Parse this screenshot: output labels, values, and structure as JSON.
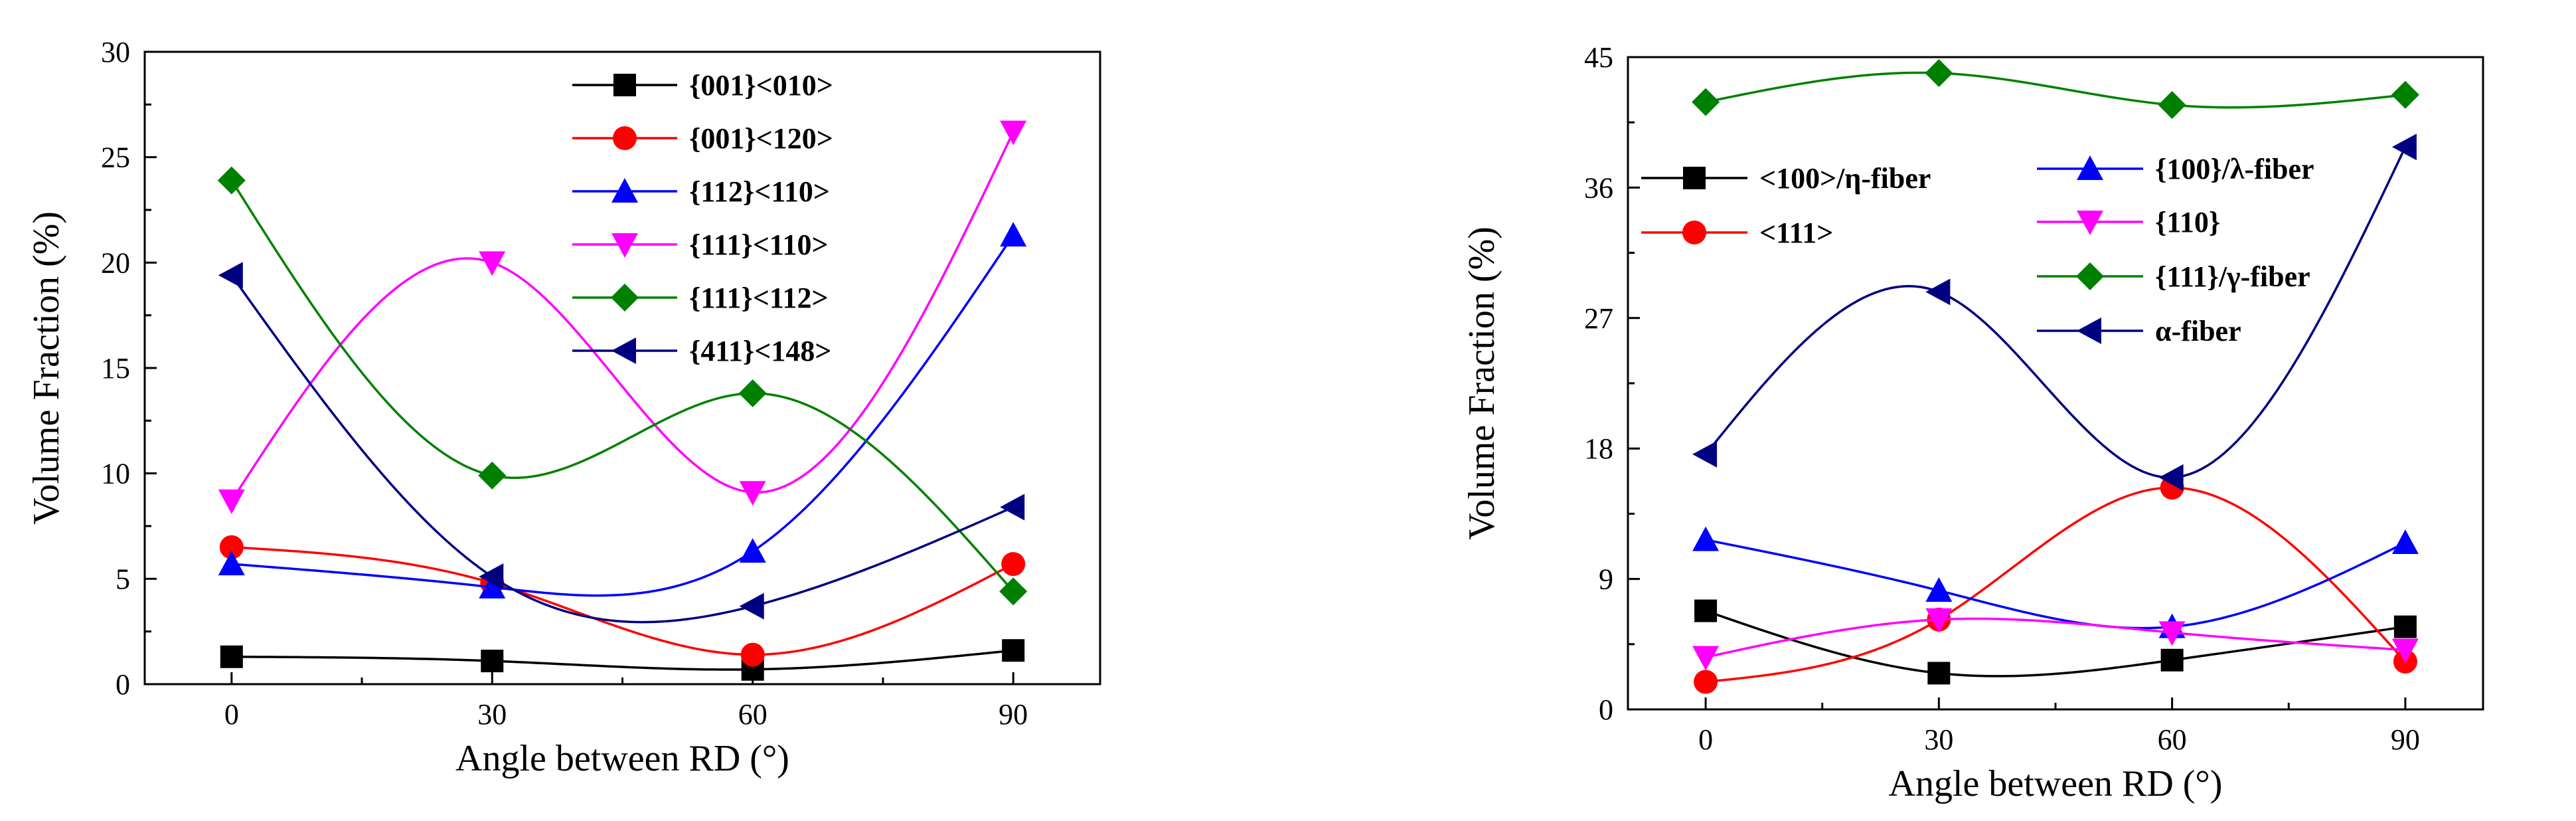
{
  "chart_data": [
    {
      "type": "line",
      "id": "left",
      "xlabel": "Angle between RD (°)",
      "ylabel": "Volume Fraction (%)",
      "x": [
        0,
        30,
        60,
        90
      ],
      "xlim": [
        -10,
        100
      ],
      "ylim": [
        0,
        30
      ],
      "xticks": [
        0,
        30,
        60,
        90
      ],
      "yticks": [
        0,
        5,
        10,
        15,
        20,
        25,
        30
      ],
      "series": [
        {
          "name": "{001}<010>",
          "values": [
            1.3,
            1.1,
            0.7,
            1.6
          ],
          "color": "#000000",
          "marker": "square"
        },
        {
          "name": "{001}<120>",
          "values": [
            6.5,
            4.8,
            1.4,
            5.7
          ],
          "color": "#ff0000",
          "marker": "circle"
        },
        {
          "name": "{112}<110>",
          "values": [
            5.7,
            4.6,
            6.3,
            21.3
          ],
          "color": "#0000ff",
          "marker": "triangle-up"
        },
        {
          "name": "{111}<110>",
          "values": [
            8.7,
            20.0,
            9.1,
            26.2
          ],
          "color": "#ff00ff",
          "marker": "triangle-down"
        },
        {
          "name": "{111}<112>",
          "values": [
            23.9,
            9.9,
            13.8,
            4.4
          ],
          "color": "#008000",
          "marker": "diamond"
        },
        {
          "name": "{411}<148>",
          "values": [
            19.4,
            5.1,
            3.7,
            8.4
          ],
          "color": "#000080",
          "marker": "triangle-left"
        }
      ]
    },
    {
      "type": "line",
      "id": "right",
      "xlabel": "Angle between RD (°)",
      "ylabel": "Volume Fraction (%)",
      "x": [
        0,
        30,
        60,
        90
      ],
      "xlim": [
        -10,
        100
      ],
      "ylim": [
        0,
        45
      ],
      "xticks": [
        0,
        30,
        60,
        90
      ],
      "yticks": [
        0,
        9,
        18,
        27,
        36,
        45
      ],
      "series": [
        {
          "name": "<100>/η-fiber",
          "values": [
            6.8,
            2.5,
            3.4,
            5.7
          ],
          "color": "#000000",
          "marker": "square"
        },
        {
          "name": "<111>",
          "values": [
            1.9,
            6.2,
            15.3,
            3.3
          ],
          "color": "#ff0000",
          "marker": "circle"
        },
        {
          "name": "{100}/λ-fiber",
          "values": [
            11.7,
            8.2,
            5.7,
            11.5
          ],
          "color": "#0000ff",
          "marker": "triangle-up"
        },
        {
          "name": "{110}",
          "values": [
            3.6,
            6.2,
            5.3,
            4.1
          ],
          "color": "#ff00ff",
          "marker": "triangle-down"
        },
        {
          "name": "{111}/γ-fiber",
          "values": [
            41.9,
            43.9,
            41.7,
            42.4
          ],
          "color": "#008000",
          "marker": "diamond"
        },
        {
          "name": "α-fiber",
          "values": [
            17.6,
            28.8,
            16.0,
            38.8
          ],
          "color": "#000080",
          "marker": "triangle-left"
        }
      ]
    }
  ]
}
